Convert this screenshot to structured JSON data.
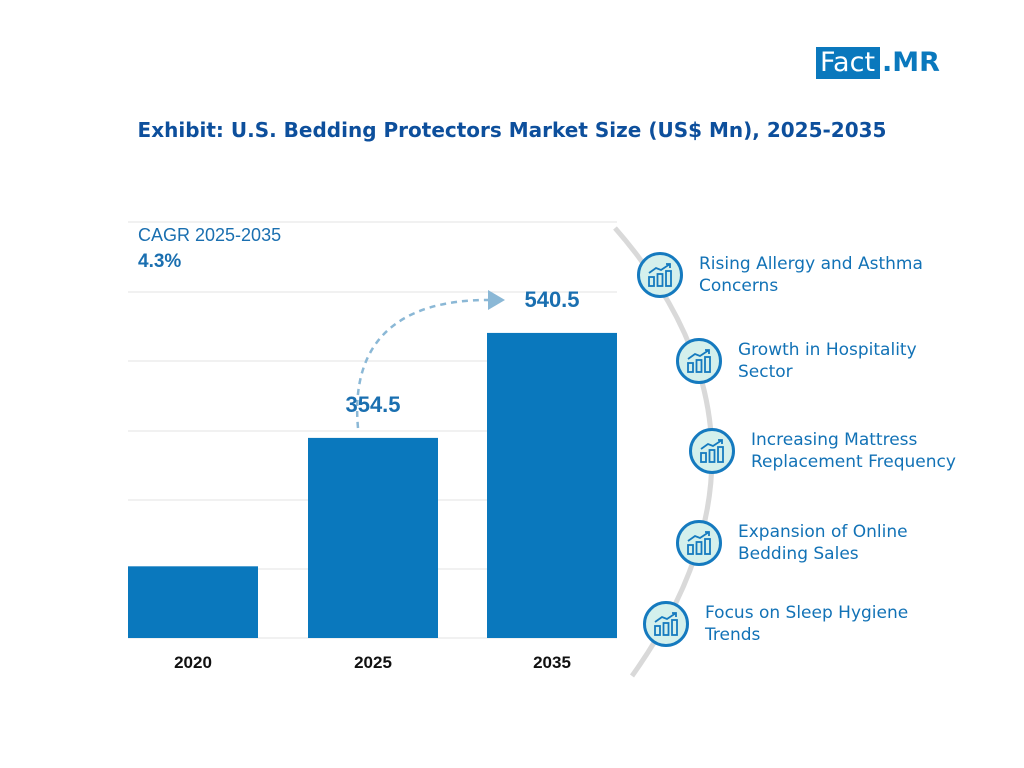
{
  "logo": {
    "fact": "Fact",
    "mr": ".MR"
  },
  "title": "Exhibit: U.S. Bedding Protectors Market Size (US$ Mn), 2025-2035",
  "cagr": {
    "label": "CAGR 2025-2035",
    "value": "4.3%"
  },
  "colors": {
    "bar": "#0a78bd",
    "accent": "#0d4f9c",
    "icon_bg": "#d4f0ec",
    "arc": "#d9d9d9",
    "arrow": "#8bb8d6"
  },
  "chart_data": {
    "type": "bar",
    "categories": [
      "2020",
      "2025",
      "2035"
    ],
    "values": [
      127,
      354.5,
      540.5
    ],
    "value_labels": [
      "",
      "354.5",
      "540.5"
    ],
    "ylim": [
      0,
      737
    ],
    "grid": true,
    "xlabel": "",
    "ylabel": ""
  },
  "drivers": [
    {
      "label_line1": "Rising Allergy and Asthma",
      "label_line2": "Concerns",
      "icon": "chart-growth-icon"
    },
    {
      "label_line1": "Growth in Hospitality",
      "label_line2": "Sector",
      "icon": "chart-growth-icon"
    },
    {
      "label_line1": "Increasing Mattress",
      "label_line2": "Replacement Frequency",
      "icon": "chart-growth-icon"
    },
    {
      "label_line1": "Expansion of Online",
      "label_line2": "Bedding Sales",
      "icon": "chart-growth-icon"
    },
    {
      "label_line1": "Focus on Sleep Hygiene",
      "label_line2": "Trends",
      "icon": "chart-growth-icon"
    }
  ]
}
